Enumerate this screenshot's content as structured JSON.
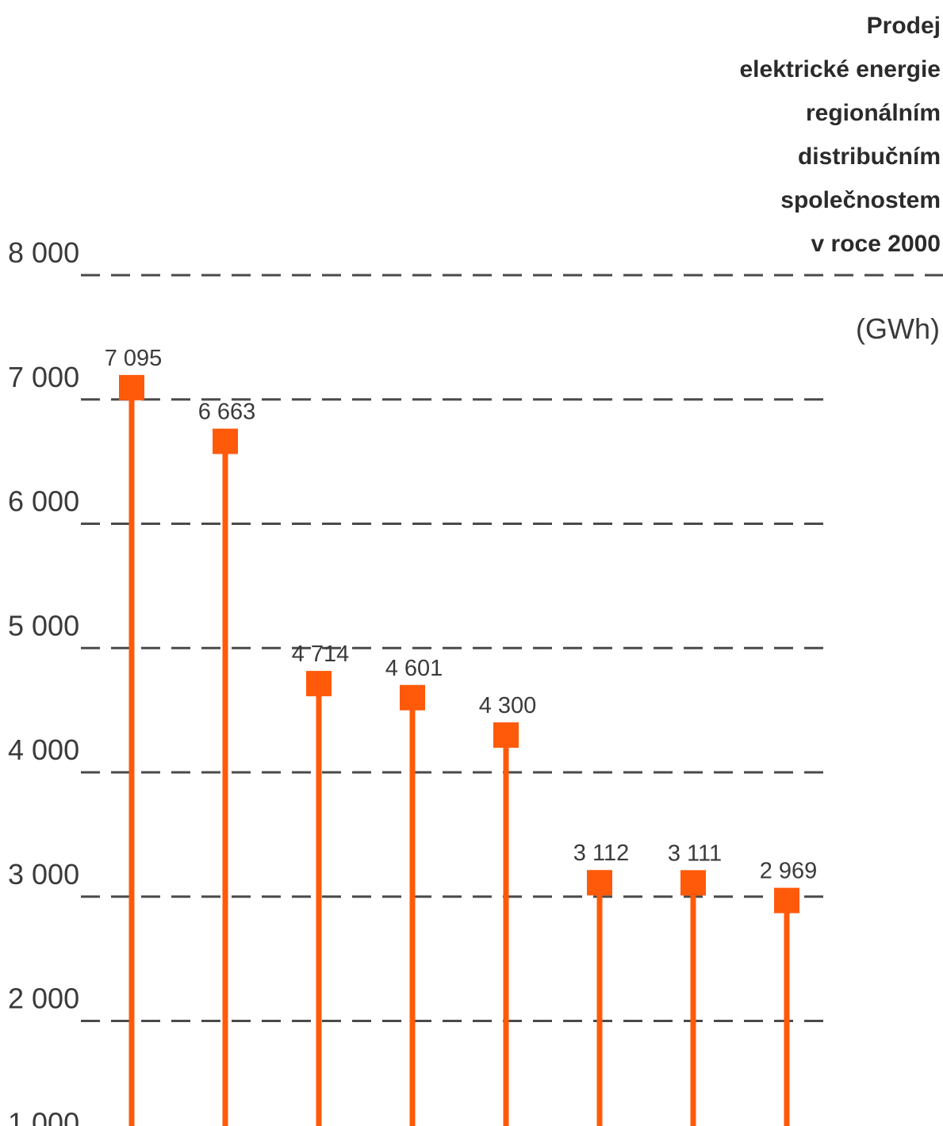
{
  "chart_data": {
    "type": "stem",
    "title_lines": [
      "Prodej",
      "elektrické energie",
      "regionálním",
      "distribučním",
      "společnostem",
      "v roce 2000"
    ],
    "unit": "(GWh)",
    "y_ticks": [
      1000,
      2000,
      3000,
      4000,
      5000,
      6000,
      7000,
      8000
    ],
    "y_tick_labels": [
      "1 000",
      "2 000",
      "3 000",
      "4 000",
      "5 000",
      "6 000",
      "7 000",
      "8 000"
    ],
    "values": [
      7095,
      6663,
      4714,
      4601,
      4300,
      3112,
      3111,
      2969
    ],
    "value_labels": [
      "7 095",
      "6 663",
      "4 714",
      "4 601",
      "4 300",
      "3 112",
      "3 111",
      "2 969"
    ],
    "grid": true,
    "color": "#ff5a0a"
  }
}
